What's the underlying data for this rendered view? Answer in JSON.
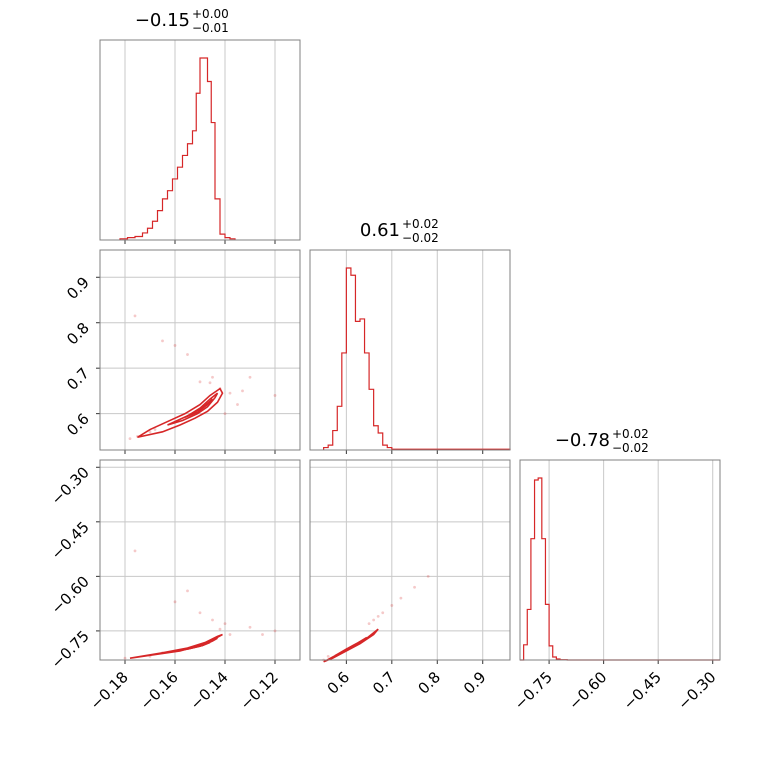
{
  "chart_data": {
    "type": "corner",
    "color": "#d62728",
    "parameters": [
      {
        "median": -0.15,
        "title_main": "−0.15",
        "title_sup": "+0.00",
        "title_sub": "−0.01",
        "range": [
          -0.19,
          -0.11
        ]
      },
      {
        "median": 0.61,
        "title_main": "0.61",
        "title_sup": "+0.02",
        "title_sub": "−0.02",
        "range": [
          0.52,
          0.96
        ]
      },
      {
        "median": -0.78,
        "title_main": "−0.78",
        "title_sup": "+0.02",
        "title_sub": "−0.02",
        "range": [
          -0.83,
          -0.28
        ]
      }
    ],
    "ticks": {
      "p0": [
        -0.18,
        -0.16,
        -0.14,
        -0.12
      ],
      "p1": [
        0.6,
        0.7,
        0.8,
        0.9
      ],
      "p2": [
        -0.75,
        -0.6,
        -0.45,
        -0.3
      ]
    },
    "tick_labels": {
      "p0": [
        "−0.18",
        "−0.16",
        "−0.14",
        "−0.12"
      ],
      "p1": [
        "0.6",
        "0.7",
        "0.8",
        "0.9"
      ],
      "p2": [
        "−0.75",
        "−0.60",
        "−0.45",
        "−0.30"
      ]
    },
    "histograms": [
      {
        "bin_edges": [
          -0.182,
          -0.179,
          -0.176,
          -0.173,
          -0.171,
          -0.169,
          -0.167,
          -0.165,
          -0.163,
          -0.161,
          -0.159,
          -0.157,
          -0.155,
          -0.153,
          -0.1515,
          -0.15,
          -0.1485,
          -0.147,
          -0.1455,
          -0.144,
          -0.142,
          -0.14,
          -0.138,
          -0.136
        ],
        "counts": [
          1,
          2,
          3,
          6,
          10,
          16,
          25,
          35,
          42,
          52,
          62,
          72,
          82,
          93,
          125,
          155,
          155,
          135,
          100,
          35,
          5,
          2,
          1
        ]
      },
      {
        "bin_edges": [
          0.55,
          0.56,
          0.57,
          0.58,
          0.59,
          0.6,
          0.61,
          0.62,
          0.63,
          0.64,
          0.65,
          0.66,
          0.67,
          0.68,
          0.69,
          0.7,
          0.72,
          0.96
        ],
        "counts": [
          1,
          2,
          8,
          18,
          40,
          75,
          72,
          53,
          54,
          40,
          25,
          10,
          7,
          2,
          1,
          0.3,
          0.3
        ]
      },
      {
        "bin_edges": [
          -0.83,
          -0.82,
          -0.81,
          -0.8,
          -0.79,
          -0.78,
          -0.77,
          -0.76,
          -0.75,
          -0.74,
          -0.73,
          -0.72,
          -0.7,
          -0.28
        ],
        "counts": [
          0,
          15,
          50,
          120,
          178,
          180,
          120,
          55,
          14,
          3,
          1,
          0.3,
          0
        ]
      }
    ],
    "scatter": {
      "p1_vs_p0": [
        [
          -0.176,
          0.815
        ],
        [
          -0.16,
          0.75
        ],
        [
          -0.155,
          0.73
        ],
        [
          -0.165,
          0.76
        ],
        [
          -0.14,
          0.6
        ],
        [
          -0.13,
          0.68
        ],
        [
          -0.12,
          0.64
        ],
        [
          -0.15,
          0.67
        ],
        [
          -0.145,
          0.68
        ],
        [
          -0.135,
          0.62
        ],
        [
          -0.17,
          0.56
        ],
        [
          -0.175,
          0.55
        ],
        [
          -0.178,
          0.545
        ],
        [
          -0.168,
          0.565
        ],
        [
          -0.142,
          0.655
        ],
        [
          -0.146,
          0.668
        ],
        [
          -0.138,
          0.645
        ],
        [
          -0.133,
          0.65
        ]
      ],
      "p2_vs_p0": [
        [
          -0.176,
          -0.53
        ],
        [
          -0.16,
          -0.67
        ],
        [
          -0.155,
          -0.64
        ],
        [
          -0.15,
          -0.7
        ],
        [
          -0.145,
          -0.72
        ],
        [
          -0.14,
          -0.73
        ],
        [
          -0.13,
          -0.74
        ],
        [
          -0.125,
          -0.76
        ],
        [
          -0.12,
          -0.75
        ],
        [
          -0.17,
          -0.82
        ],
        [
          -0.18,
          -0.825
        ],
        [
          -0.165,
          -0.81
        ],
        [
          -0.138,
          -0.76
        ],
        [
          -0.142,
          -0.745
        ]
      ],
      "p2_vs_p1": [
        [
          0.78,
          -0.6
        ],
        [
          0.75,
          -0.63
        ],
        [
          0.72,
          -0.66
        ],
        [
          0.7,
          -0.68
        ],
        [
          0.68,
          -0.7
        ],
        [
          0.66,
          -0.72
        ],
        [
          0.55,
          -0.83
        ],
        [
          0.56,
          -0.82
        ],
        [
          0.65,
          -0.73
        ],
        [
          0.67,
          -0.71
        ]
      ]
    },
    "contours": {
      "p1_vs_p0": [
        [
          [
            -0.175,
            0.548
          ],
          [
            -0.165,
            0.56
          ],
          [
            -0.158,
            0.575
          ],
          [
            -0.152,
            0.59
          ],
          [
            -0.147,
            0.605
          ],
          [
            -0.143,
            0.625
          ],
          [
            -0.141,
            0.645
          ],
          [
            -0.142,
            0.655
          ],
          [
            -0.146,
            0.64
          ],
          [
            -0.15,
            0.62
          ],
          [
            -0.156,
            0.6
          ],
          [
            -0.162,
            0.585
          ],
          [
            -0.17,
            0.565
          ],
          [
            -0.175,
            0.548
          ]
        ],
        [
          [
            -0.163,
            0.575
          ],
          [
            -0.157,
            0.585
          ],
          [
            -0.151,
            0.6
          ],
          [
            -0.147,
            0.615
          ],
          [
            -0.144,
            0.635
          ],
          [
            -0.143,
            0.645
          ],
          [
            -0.146,
            0.632
          ],
          [
            -0.15,
            0.612
          ],
          [
            -0.155,
            0.595
          ],
          [
            -0.163,
            0.575
          ]
        ],
        [
          [
            -0.156,
            0.592
          ],
          [
            -0.151,
            0.603
          ],
          [
            -0.147,
            0.62
          ],
          [
            -0.145,
            0.632
          ],
          [
            -0.148,
            0.618
          ],
          [
            -0.152,
            0.604
          ],
          [
            -0.156,
            0.592
          ]
        ]
      ],
      "p2_vs_p0": [
        [
          [
            -0.178,
            -0.825
          ],
          [
            -0.168,
            -0.815
          ],
          [
            -0.158,
            -0.805
          ],
          [
            -0.15,
            -0.79
          ],
          [
            -0.145,
            -0.775
          ],
          [
            -0.141,
            -0.76
          ],
          [
            -0.143,
            -0.765
          ],
          [
            -0.148,
            -0.782
          ],
          [
            -0.155,
            -0.797
          ],
          [
            -0.165,
            -0.81
          ],
          [
            -0.178,
            -0.825
          ]
        ],
        [
          [
            -0.162,
            -0.808
          ],
          [
            -0.155,
            -0.8
          ],
          [
            -0.149,
            -0.79
          ],
          [
            -0.145,
            -0.778
          ],
          [
            -0.143,
            -0.77
          ],
          [
            -0.147,
            -0.782
          ],
          [
            -0.152,
            -0.795
          ],
          [
            -0.162,
            -0.808
          ]
        ],
        [
          [
            -0.155,
            -0.8
          ],
          [
            -0.15,
            -0.792
          ],
          [
            -0.146,
            -0.782
          ],
          [
            -0.149,
            -0.79
          ],
          [
            -0.155,
            -0.8
          ]
        ]
      ],
      "p2_vs_p1": [
        [
          [
            0.55,
            -0.835
          ],
          [
            0.58,
            -0.815
          ],
          [
            0.61,
            -0.795
          ],
          [
            0.64,
            -0.775
          ],
          [
            0.66,
            -0.755
          ],
          [
            0.67,
            -0.745
          ],
          [
            0.66,
            -0.76
          ],
          [
            0.63,
            -0.785
          ],
          [
            0.6,
            -0.805
          ],
          [
            0.57,
            -0.825
          ],
          [
            0.55,
            -0.835
          ]
        ],
        [
          [
            0.575,
            -0.818
          ],
          [
            0.6,
            -0.8
          ],
          [
            0.625,
            -0.783
          ],
          [
            0.645,
            -0.768
          ],
          [
            0.63,
            -0.782
          ],
          [
            0.605,
            -0.8
          ],
          [
            0.575,
            -0.818
          ]
        ],
        [
          [
            0.595,
            -0.805
          ],
          [
            0.615,
            -0.792
          ],
          [
            0.63,
            -0.78
          ],
          [
            0.615,
            -0.79
          ],
          [
            0.595,
            -0.805
          ]
        ]
      ]
    }
  }
}
